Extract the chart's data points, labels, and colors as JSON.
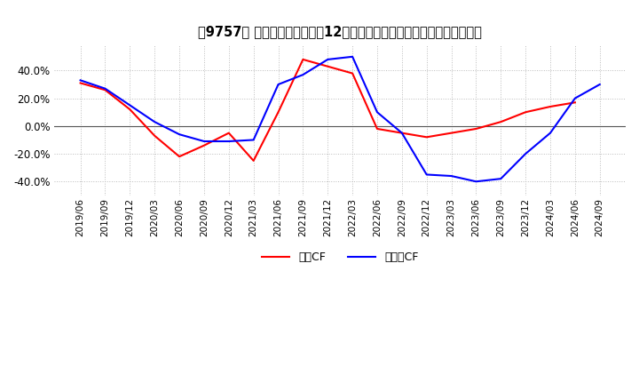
{
  "title": "【9757】 キャッシュフローの12か月移動合計の対前年同期増減率の推移",
  "x_labels": [
    "2019/06",
    "2019/09",
    "2019/12",
    "2020/03",
    "2020/06",
    "2020/09",
    "2020/12",
    "2021/03",
    "2021/06",
    "2021/09",
    "2021/12",
    "2022/03",
    "2022/06",
    "2022/09",
    "2022/12",
    "2023/03",
    "2023/06",
    "2023/09",
    "2023/12",
    "2024/03",
    "2024/06",
    "2024/09"
  ],
  "operating_cf": [
    0.31,
    0.26,
    0.12,
    -0.07,
    -0.22,
    -0.14,
    -0.05,
    -0.25,
    0.1,
    0.48,
    0.43,
    0.38,
    -0.02,
    -0.05,
    -0.08,
    -0.05,
    -0.02,
    0.03,
    0.1,
    0.14,
    0.17,
    null
  ],
  "free_cf": [
    0.33,
    0.27,
    0.15,
    0.03,
    -0.06,
    -0.11,
    -0.11,
    -0.1,
    0.3,
    0.37,
    0.48,
    0.5,
    0.1,
    -0.05,
    -0.35,
    -0.36,
    -0.4,
    -0.38,
    -0.2,
    -0.05,
    0.2,
    0.3
  ],
  "operating_color": "#ff0000",
  "free_color": "#0000ff",
  "ylim": [
    -0.5,
    0.58
  ],
  "yticks": [
    -0.4,
    -0.2,
    0.0,
    0.2,
    0.4
  ],
  "grid_color": "#bbbbbb",
  "background_color": "#ffffff",
  "legend_operating": "営業CF",
  "legend_free": "フリーCF"
}
